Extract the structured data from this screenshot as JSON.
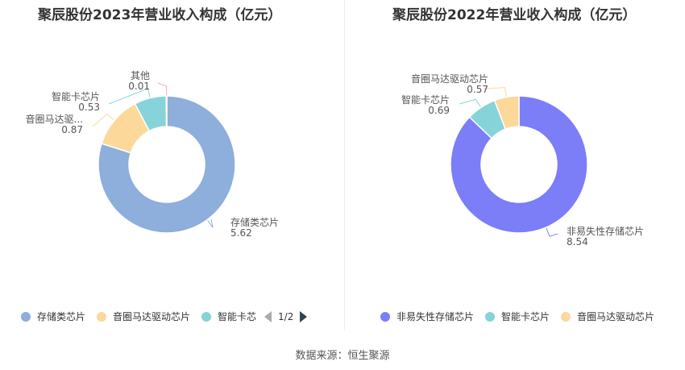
{
  "chart_data": [
    {
      "type": "pie",
      "title": "聚辰股份2023年营业收入构成（亿元）",
      "series": [
        {
          "name": "存储类芯片",
          "value": 5.62,
          "label": "存储类芯片",
          "value_label": "5.62",
          "color": "#8eaedb"
        },
        {
          "name": "音圈马达驱动芯片",
          "value": 0.87,
          "label": "音圈马达驱...",
          "value_label": "0.87",
          "color": "#fcd89a"
        },
        {
          "name": "智能卡芯片",
          "value": 0.53,
          "label": "智能卡芯片",
          "value_label": "0.53",
          "color": "#86d3d9"
        },
        {
          "name": "其他",
          "value": 0.01,
          "label": "其他",
          "value_label": "0.01",
          "color": "#f4aacb"
        }
      ],
      "legend": {
        "position": "bottom",
        "items": [
          {
            "label": "存储类芯片",
            "color": "#8eaedb"
          },
          {
            "label": "音圈马达驱动芯片",
            "color": "#fcd89a"
          },
          {
            "label": "智能卡芯",
            "color": "#86d3d9"
          }
        ],
        "page_label": "1/2"
      }
    },
    {
      "type": "pie",
      "title": "聚辰股份2022年营业收入构成（亿元）",
      "series": [
        {
          "name": "非易失性存储芯片",
          "value": 8.54,
          "label": "非易失性存储芯片",
          "value_label": "8.54",
          "color": "#7b7ef7"
        },
        {
          "name": "智能卡芯片",
          "value": 0.69,
          "label": "智能卡芯片",
          "value_label": "0.69",
          "color": "#86d3d9"
        },
        {
          "name": "音圈马达驱动芯片",
          "value": 0.57,
          "label": "音圈马达驱动芯片",
          "value_label": "0.57",
          "color": "#fcd89a"
        }
      ],
      "legend": {
        "position": "bottom",
        "items": [
          {
            "label": "非易失性存储芯片",
            "color": "#7b7ef7"
          },
          {
            "label": "智能卡芯片",
            "color": "#86d3d9"
          },
          {
            "label": "音圈马达驱动芯片",
            "color": "#fcd89a"
          }
        ]
      }
    }
  ],
  "source": "数据来源：恒生聚源"
}
